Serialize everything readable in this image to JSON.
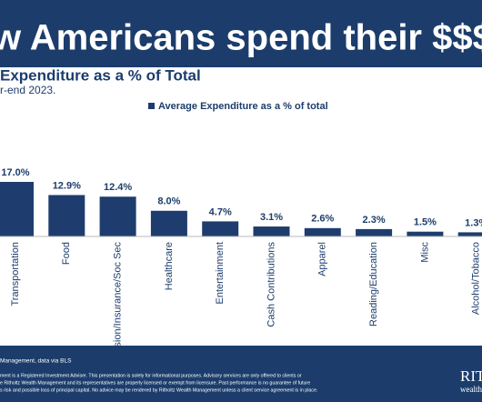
{
  "chart_data": {
    "type": "bar",
    "title": "w Americans spend their $$$",
    "subtitle": "Expenditure as a % of Total",
    "note": "r-end 2023.",
    "legend": "Average Expenditure as a % of total",
    "color": "#1e3d6e",
    "categories": [
      "Transportation",
      "Food",
      "Pension/Insurance/Soc Sec",
      "Healthcare",
      "Entertainment",
      "Cash Contributions",
      "Apparel",
      "Reading/Education",
      "Misc",
      "Alcohol/Tobacco"
    ],
    "values": [
      17.0,
      12.9,
      12.4,
      8.0,
      4.7,
      3.1,
      2.6,
      2.3,
      1.5,
      1.3
    ],
    "value_labels": [
      "17.0%",
      "12.9%",
      "12.4%",
      "8.0%",
      "4.7%",
      "3.1%",
      "2.6%",
      "2.3%",
      "1.5%",
      "1.3%"
    ]
  },
  "footer": {
    "source": "Management, data via BLS",
    "disclaimer": [
      "ment is a Registered Investment Adviser. This presentation is solely for informational purposes. Advisory services are only offered to clients or",
      "e Ritholtz Wealth Management and its representatives are properly licensed or exempt from licensure. Past performance is no guarantee of future",
      "s risk and possible loss of principal capital. No advice may be rendered by Ritholtz Wealth Management unless a client service agreement is in place."
    ],
    "logo": "RIT",
    "logo_sub": "wealth"
  }
}
